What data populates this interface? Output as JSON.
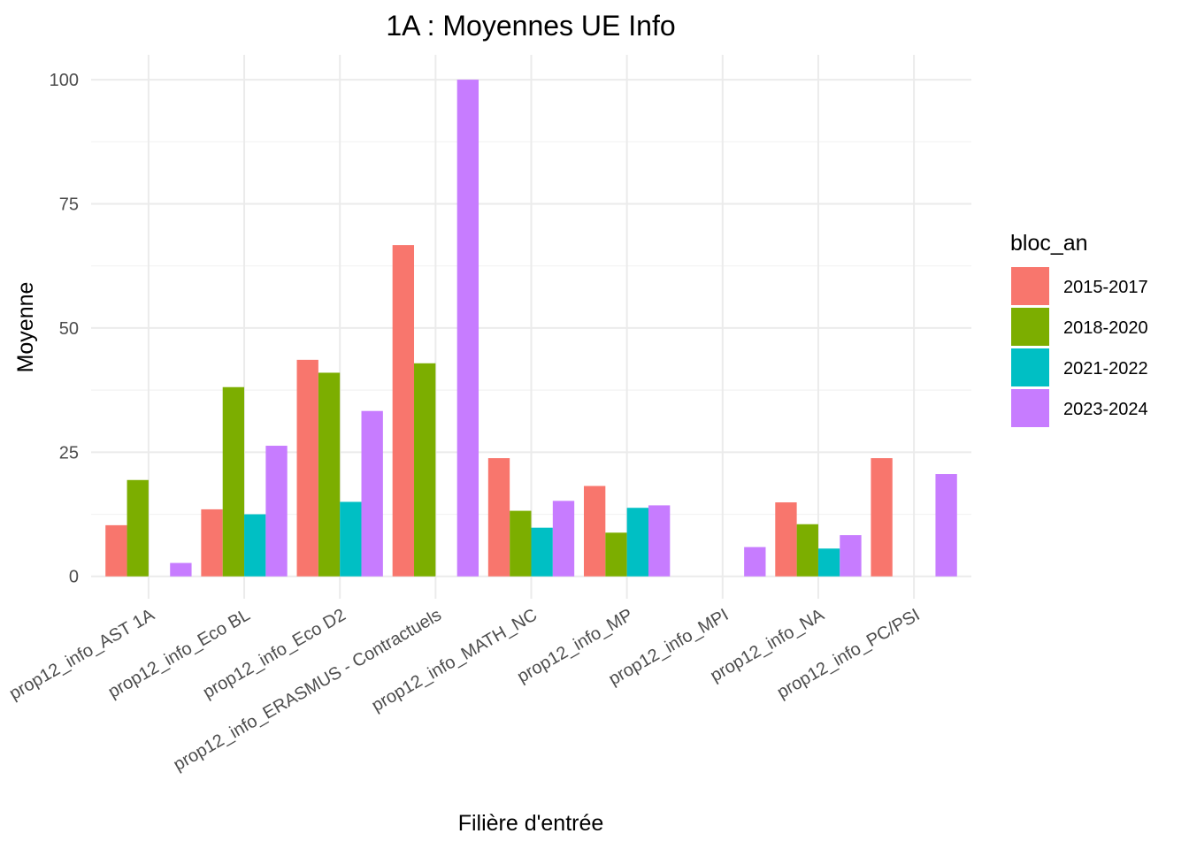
{
  "chart_data": {
    "type": "bar",
    "title": "1A : Moyennes UE Info",
    "xlabel": "Filière d'entrée",
    "ylabel": "Moyenne",
    "ylim": [
      -4.5,
      105
    ],
    "yticks": [
      0,
      25,
      50,
      75,
      100
    ],
    "grid": true,
    "legend": {
      "title": "bloc_an",
      "position": "right"
    },
    "categories": [
      "prop12_info_AST 1A",
      "prop12_info_Eco BL",
      "prop12_info_Eco D2",
      "prop12_info_ERASMUS - Contractuels",
      "prop12_info_MATH_NC",
      "prop12_info_MP",
      "prop12_info_MPI",
      "prop12_info_NA",
      "prop12_info_PC/PSI"
    ],
    "series": [
      {
        "name": "2015-2017",
        "color": "#F8766D",
        "values": [
          10.3,
          13.5,
          43.6,
          66.7,
          23.8,
          18.2,
          null,
          14.9,
          23.8
        ]
      },
      {
        "name": "2018-2020",
        "color": "#7CAE00",
        "values": [
          19.4,
          38.1,
          41.0,
          42.9,
          13.2,
          8.8,
          null,
          10.5,
          null
        ]
      },
      {
        "name": "2021-2022",
        "color": "#00BFC4",
        "values": [
          null,
          12.5,
          15.0,
          null,
          9.8,
          13.8,
          null,
          5.6,
          null
        ]
      },
      {
        "name": "2023-2024",
        "color": "#C77CFF",
        "values": [
          2.7,
          26.3,
          33.3,
          100,
          15.2,
          14.3,
          5.9,
          8.3,
          20.6
        ]
      }
    ]
  }
}
